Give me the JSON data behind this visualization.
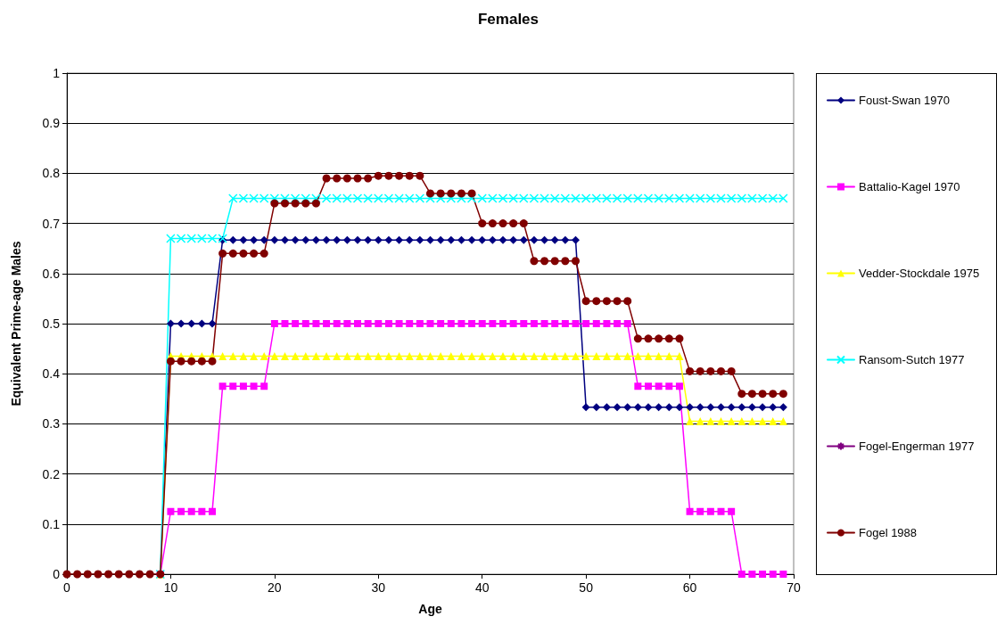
{
  "chart_data": {
    "type": "line",
    "title": "Females",
    "xlabel": "Age",
    "ylabel": "Equivalent Prime-age Males",
    "x": [
      0,
      1,
      2,
      3,
      4,
      5,
      6,
      7,
      8,
      9,
      10,
      11,
      12,
      13,
      14,
      15,
      16,
      17,
      18,
      19,
      20,
      21,
      22,
      23,
      24,
      25,
      26,
      27,
      28,
      29,
      30,
      31,
      32,
      33,
      34,
      35,
      36,
      37,
      38,
      39,
      40,
      41,
      42,
      43,
      44,
      45,
      46,
      47,
      48,
      49,
      50,
      51,
      52,
      53,
      54,
      55,
      56,
      57,
      58,
      59,
      60,
      61,
      62,
      63,
      64,
      65,
      66,
      67,
      68,
      69
    ],
    "xlim": [
      0,
      70
    ],
    "xticks": [
      0,
      10,
      20,
      30,
      40,
      50,
      60,
      70
    ],
    "ylim": [
      0,
      1
    ],
    "yticks": [
      0,
      0.1,
      0.2,
      0.3,
      0.4,
      0.5,
      0.6,
      0.7,
      0.8,
      0.9,
      1
    ],
    "grid": "y",
    "legend": "right",
    "line_style": "solid",
    "series": [
      {
        "name": "Foust-Swan 1970",
        "color": "#000080",
        "marker": "diamond",
        "values": [
          null,
          null,
          null,
          null,
          null,
          null,
          null,
          null,
          null,
          0,
          0.5,
          0.5,
          0.5,
          0.5,
          0.5,
          0.667,
          0.667,
          0.667,
          0.667,
          0.667,
          0.667,
          0.667,
          0.667,
          0.667,
          0.667,
          0.667,
          0.667,
          0.667,
          0.667,
          0.667,
          0.667,
          0.667,
          0.667,
          0.667,
          0.667,
          0.667,
          0.667,
          0.667,
          0.667,
          0.667,
          0.667,
          0.667,
          0.667,
          0.667,
          0.667,
          0.667,
          0.667,
          0.667,
          0.667,
          0.667,
          0.333,
          0.333,
          0.333,
          0.333,
          0.333,
          0.333,
          0.333,
          0.333,
          0.333,
          0.333,
          0.333,
          0.333,
          0.333,
          0.333,
          0.333,
          0.333,
          0.333,
          0.333,
          0.333,
          0.333
        ]
      },
      {
        "name": "Battalio-Kagel 1970",
        "color": "#ff00ff",
        "marker": "square",
        "values": [
          null,
          null,
          null,
          null,
          null,
          null,
          null,
          null,
          null,
          0,
          0.125,
          0.125,
          0.125,
          0.125,
          0.125,
          0.375,
          0.375,
          0.375,
          0.375,
          0.375,
          0.5,
          0.5,
          0.5,
          0.5,
          0.5,
          0.5,
          0.5,
          0.5,
          0.5,
          0.5,
          0.5,
          0.5,
          0.5,
          0.5,
          0.5,
          0.5,
          0.5,
          0.5,
          0.5,
          0.5,
          0.5,
          0.5,
          0.5,
          0.5,
          0.5,
          0.5,
          0.5,
          0.5,
          0.5,
          0.5,
          0.5,
          0.5,
          0.5,
          0.5,
          0.5,
          0.375,
          0.375,
          0.375,
          0.375,
          0.375,
          0.125,
          0.125,
          0.125,
          0.125,
          0.125,
          0,
          0,
          0,
          0,
          0
        ]
      },
      {
        "name": "Vedder-Stockdale 1975",
        "color": "#ffff00",
        "marker": "triangle",
        "values": [
          null,
          null,
          null,
          null,
          null,
          null,
          null,
          null,
          null,
          0,
          0.435,
          0.435,
          0.435,
          0.435,
          0.435,
          0.435,
          0.435,
          0.435,
          0.435,
          0.435,
          0.435,
          0.435,
          0.435,
          0.435,
          0.435,
          0.435,
          0.435,
          0.435,
          0.435,
          0.435,
          0.435,
          0.435,
          0.435,
          0.435,
          0.435,
          0.435,
          0.435,
          0.435,
          0.435,
          0.435,
          0.435,
          0.435,
          0.435,
          0.435,
          0.435,
          0.435,
          0.435,
          0.435,
          0.435,
          0.435,
          0.435,
          0.435,
          0.435,
          0.435,
          0.435,
          0.435,
          0.435,
          0.435,
          0.435,
          0.435,
          0.305,
          0.305,
          0.305,
          0.305,
          0.305,
          0.305,
          0.305,
          0.305,
          0.305,
          0.305
        ]
      },
      {
        "name": "Ransom-Sutch 1977",
        "color": "#00ffff",
        "marker": "cross",
        "values": [
          null,
          null,
          null,
          null,
          null,
          null,
          null,
          null,
          null,
          0,
          0.67,
          0.67,
          0.67,
          0.67,
          0.67,
          0.67,
          0.75,
          0.75,
          0.75,
          0.75,
          0.75,
          0.75,
          0.75,
          0.75,
          0.75,
          0.75,
          0.75,
          0.75,
          0.75,
          0.75,
          0.75,
          0.75,
          0.75,
          0.75,
          0.75,
          0.75,
          0.75,
          0.75,
          0.75,
          0.75,
          0.75,
          0.75,
          0.75,
          0.75,
          0.75,
          0.75,
          0.75,
          0.75,
          0.75,
          0.75,
          0.75,
          0.75,
          0.75,
          0.75,
          0.75,
          0.75,
          0.75,
          0.75,
          0.75,
          0.75,
          0.75,
          0.75,
          0.75,
          0.75,
          0.75,
          0.75,
          0.75,
          0.75,
          0.75,
          0.75
        ]
      },
      {
        "name": "Fogel-Engerman 1977",
        "color": "#800080",
        "marker": "star",
        "values": [
          null,
          null,
          null,
          null,
          null,
          null,
          null,
          null,
          null,
          null,
          null,
          null,
          null,
          null,
          null,
          null,
          null,
          null,
          null,
          null,
          null,
          null,
          null,
          null,
          null,
          null,
          null,
          null,
          null,
          null,
          null,
          null,
          null,
          null,
          null,
          null,
          null,
          null,
          null,
          null,
          null,
          null,
          null,
          null,
          null,
          null,
          null,
          null,
          null,
          null,
          null,
          null,
          null,
          null,
          null,
          null,
          null,
          null,
          null,
          null,
          null,
          null,
          null,
          null,
          null,
          null,
          null,
          null,
          null,
          null
        ]
      },
      {
        "name": "Fogel 1988",
        "color": "#800000",
        "marker": "circle",
        "values": [
          0,
          0,
          0,
          0,
          0,
          0,
          0,
          0,
          0,
          0,
          0.425,
          0.425,
          0.425,
          0.425,
          0.425,
          0.64,
          0.64,
          0.64,
          0.64,
          0.64,
          0.74,
          0.74,
          0.74,
          0.74,
          0.74,
          0.79,
          0.79,
          0.79,
          0.79,
          0.79,
          0.795,
          0.795,
          0.795,
          0.795,
          0.795,
          0.76,
          0.76,
          0.76,
          0.76,
          0.76,
          0.7,
          0.7,
          0.7,
          0.7,
          0.7,
          0.625,
          0.625,
          0.625,
          0.625,
          0.625,
          0.545,
          0.545,
          0.545,
          0.545,
          0.545,
          0.47,
          0.47,
          0.47,
          0.47,
          0.47,
          0.405,
          0.405,
          0.405,
          0.405,
          0.405,
          0.36,
          0.36,
          0.36,
          0.36,
          0.36
        ]
      }
    ]
  }
}
